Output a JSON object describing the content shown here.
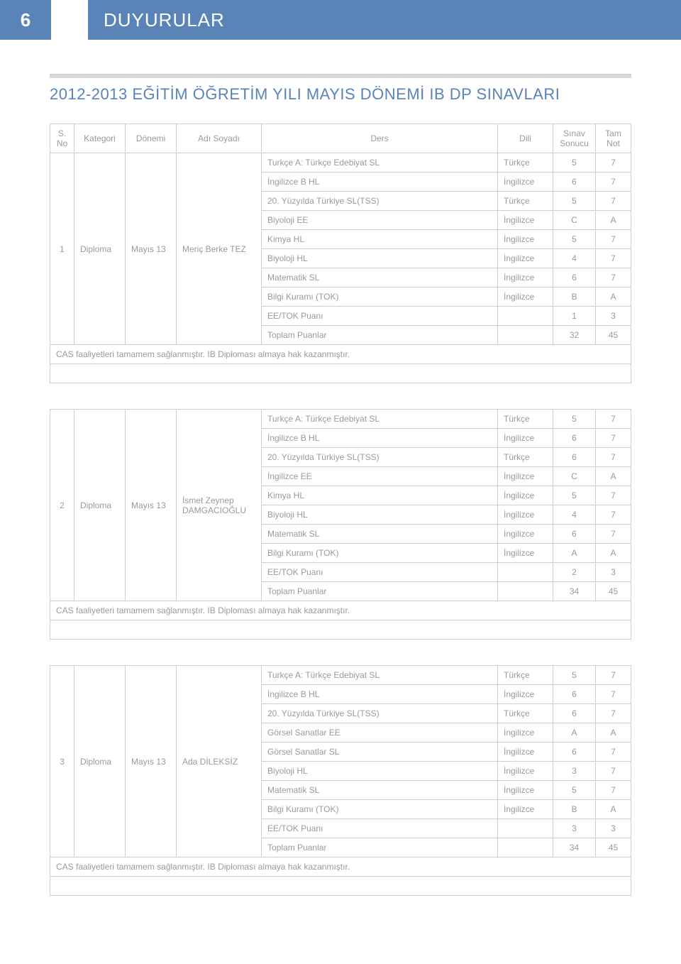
{
  "page_number": "6",
  "header_title": "DUYURULAR",
  "subtitle": "2012-2013 EĞİTİM ÖĞRETİM YILI MAYIS DÖNEMİ IB DP SINAVLARI",
  "colors": {
    "accent": "#5a84b8",
    "border": "#d0d0d0",
    "text": "#9a9a9a",
    "sub_bar": "#d9d9d9"
  },
  "columns": {
    "no": "S. No",
    "kategori": "Kategori",
    "donemi": "Dönemi",
    "adsoyad": "Adı Soyadı",
    "ders": "Ders",
    "dili": "Dili",
    "sinav": "Sınav Sonucu",
    "tam": "Tam Not"
  },
  "students": [
    {
      "no": "1",
      "kategori": "Diploma",
      "donemi": "Mayıs 13",
      "name": "Meriç Berke TEZ",
      "rows": [
        {
          "ders": "Turkçe A: Türkçe Edebiyat SL",
          "dili": "Türkçe",
          "sinav": "5",
          "tam": "7"
        },
        {
          "ders": "İngilizce B HL",
          "dili": "İngilizce",
          "sinav": "6",
          "tam": "7"
        },
        {
          "ders": "20. Yüzyılda Türkiye SL(TSS)",
          "dili": "Türkçe",
          "sinav": "5",
          "tam": "7"
        },
        {
          "ders": "Biyoloji EE",
          "dili": "İngilizce",
          "sinav": "C",
          "tam": "A"
        },
        {
          "ders": "Kimya HL",
          "dili": "İngilizce",
          "sinav": "5",
          "tam": "7"
        },
        {
          "ders": "Biyoloji HL",
          "dili": "İngilizce",
          "sinav": "4",
          "tam": "7"
        },
        {
          "ders": "Matematik SL",
          "dili": "İngilizce",
          "sinav": "6",
          "tam": "7"
        },
        {
          "ders": "Bilgi Kuramı (TOK)",
          "dili": "İngilizce",
          "sinav": "B",
          "tam": "A"
        },
        {
          "ders": "EE/TOK Puanı",
          "dili": "",
          "sinav": "1",
          "tam": "3"
        },
        {
          "ders": "Toplam Puanlar",
          "dili": "",
          "sinav": "32",
          "tam": "45"
        }
      ],
      "cas": "CAS faaliyetleri tamamem sağlanmıştır. IB Diploması almaya hak kazanmıştır."
    },
    {
      "no": "2",
      "kategori": "Diploma",
      "donemi": "Mayıs 13",
      "name": "İsmet Zeynep DAMGACIOĞLU",
      "rows": [
        {
          "ders": "Turkçe A: Türkçe Edebiyat SL",
          "dili": "Türkçe",
          "sinav": "5",
          "tam": "7"
        },
        {
          "ders": "İngilizce B HL",
          "dili": "İngilizce",
          "sinav": "6",
          "tam": "7"
        },
        {
          "ders": "20. Yüzyılda Türkiye SL(TSS)",
          "dili": "Türkçe",
          "sinav": "6",
          "tam": "7"
        },
        {
          "ders": "İngilizce EE",
          "dili": "İngilizce",
          "sinav": "C",
          "tam": "A"
        },
        {
          "ders": "Kimya HL",
          "dili": "İngilizce",
          "sinav": "5",
          "tam": "7"
        },
        {
          "ders": "Biyoloji HL",
          "dili": "İngilizce",
          "sinav": "4",
          "tam": "7"
        },
        {
          "ders": "Matematik SL",
          "dili": "İngilizce",
          "sinav": "6",
          "tam": "7"
        },
        {
          "ders": "Bilgi Kuramı (TOK)",
          "dili": "İngilizce",
          "sinav": "A",
          "tam": "A"
        },
        {
          "ders": "EE/TOK Puanı",
          "dili": "",
          "sinav": "2",
          "tam": "3"
        },
        {
          "ders": "Toplam Puanlar",
          "dili": "",
          "sinav": "34",
          "tam": "45"
        }
      ],
      "cas": "CAS faaliyetleri tamamem sağlanmıştır. IB Diploması almaya hak kazanmıştır."
    },
    {
      "no": "3",
      "kategori": "Diploma",
      "donemi": "Mayıs 13",
      "name": "Ada DİLEKSİZ",
      "rows": [
        {
          "ders": "Turkçe A: Türkçe Edebiyat SL",
          "dili": "Türkçe",
          "sinav": "5",
          "tam": "7"
        },
        {
          "ders": "İngilizce B HL",
          "dili": "İngilizce",
          "sinav": "6",
          "tam": "7"
        },
        {
          "ders": "20. Yüzyılda Türkiye SL(TSS)",
          "dili": "Türkçe",
          "sinav": "6",
          "tam": "7"
        },
        {
          "ders": "Görsel Sanatlar EE",
          "dili": "İngilizce",
          "sinav": "A",
          "tam": "A"
        },
        {
          "ders": "Görsel Sanatlar SL",
          "dili": "İngilizce",
          "sinav": "6",
          "tam": "7"
        },
        {
          "ders": "Biyoloji HL",
          "dili": "İngilizce",
          "sinav": "3",
          "tam": "7"
        },
        {
          "ders": "Matematik SL",
          "dili": "İngilizce",
          "sinav": "5",
          "tam": "7"
        },
        {
          "ders": "Bilgi Kuramı (TOK)",
          "dili": "İngilizce",
          "sinav": "B",
          "tam": "A"
        },
        {
          "ders": "EE/TOK Puanı",
          "dili": "",
          "sinav": "3",
          "tam": "3"
        },
        {
          "ders": "Toplam Puanlar",
          "dili": "",
          "sinav": "34",
          "tam": "45"
        }
      ],
      "cas": "CAS faaliyetleri tamamem sağlanmıştır. IB Diploması almaya hak kazanmıştır."
    }
  ]
}
